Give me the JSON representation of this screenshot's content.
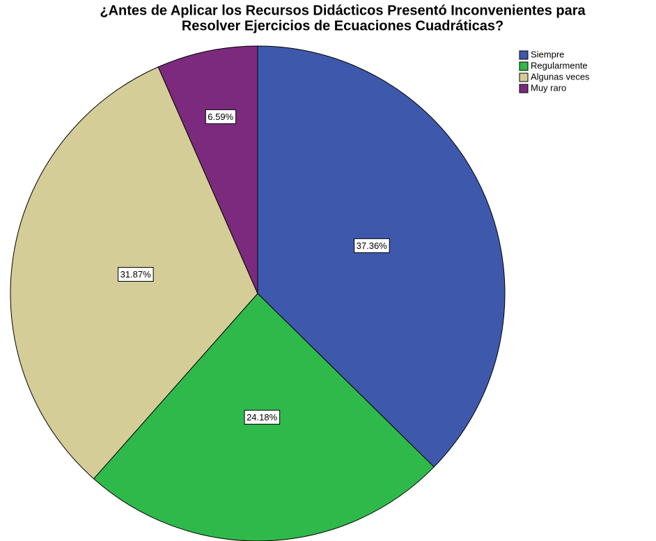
{
  "chart_data": {
    "type": "pie",
    "title": [
      "¿Antes de Aplicar los Recursos Didácticos Presentó Inconvenientes para",
      "Resolver Ejercicios de Ecuaciones Cuadráticas?"
    ],
    "categories": [
      "Siempre",
      "Regularmente",
      "Algunas veces",
      "Muy raro"
    ],
    "values": [
      37.36,
      24.18,
      31.87,
      6.59
    ],
    "value_labels": [
      "37.36%",
      "24.18%",
      "31.87%",
      "6.59%"
    ],
    "colors": [
      "#3e58ac",
      "#30b94b",
      "#d4cd97",
      "#7b2a7e"
    ],
    "legend": "upper right"
  }
}
